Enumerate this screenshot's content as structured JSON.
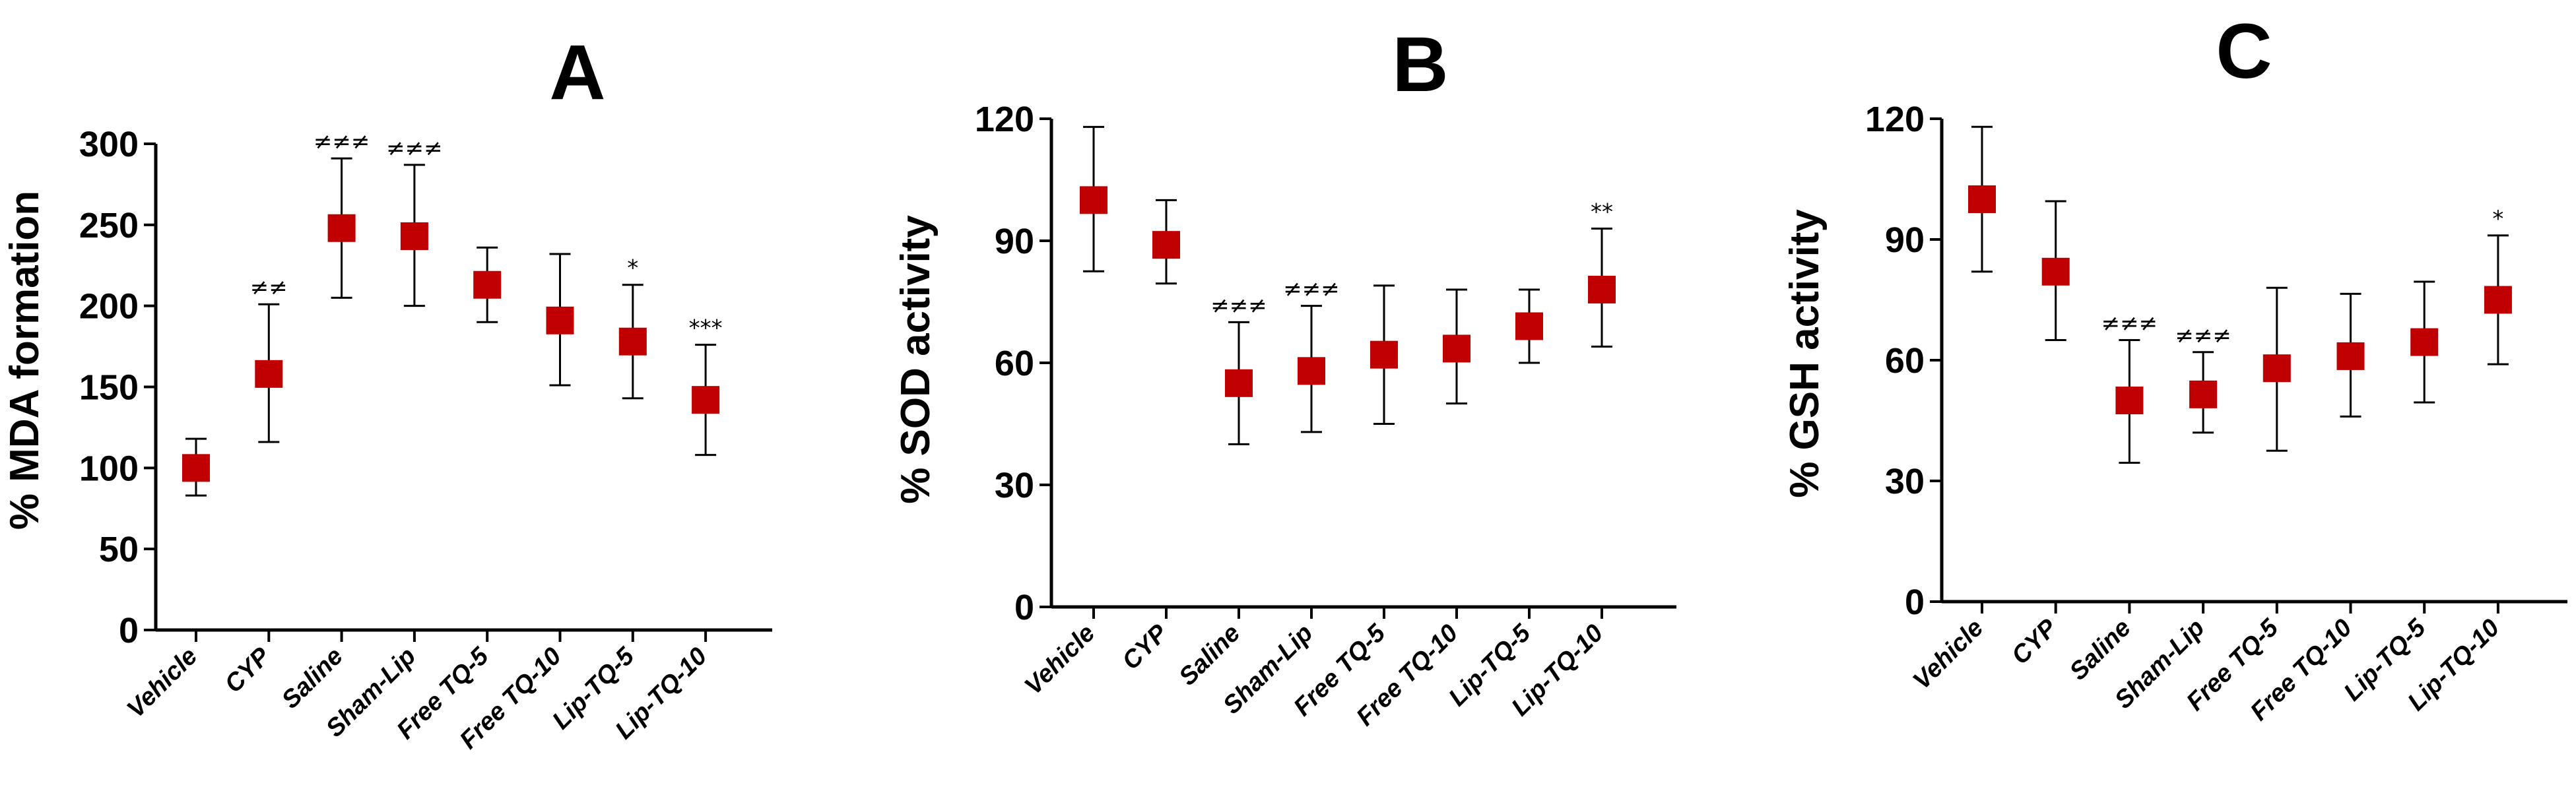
{
  "colors": {
    "marker": "#c00000",
    "axis": "#000000",
    "background": "#ffffff"
  },
  "chart_data": [
    {
      "type": "scatter",
      "panel_label": "A",
      "ylabel": "% MDA formation",
      "xlabel": "",
      "ylim": [
        0,
        300
      ],
      "yticks": [
        0,
        50,
        100,
        150,
        200,
        250,
        300
      ],
      "categories": [
        "Vehicle",
        "CYP",
        "Saline",
        "Sham-Lip",
        "Free TQ-5",
        "Free TQ-10",
        "Lip-TQ-5",
        "Lip-TQ-10"
      ],
      "series": [
        {
          "name": "% MDA formation",
          "values": [
            100,
            158,
            248,
            243,
            213,
            191,
            178,
            142
          ],
          "error_low": [
            83,
            116,
            205,
            200,
            190,
            151,
            143,
            108
          ],
          "error_high": [
            118,
            201,
            291,
            287,
            236,
            232,
            213,
            176
          ],
          "annotations": [
            "",
            "≠≠",
            "≠≠≠",
            "≠≠≠",
            "",
            "",
            "*",
            "***"
          ]
        }
      ]
    },
    {
      "type": "scatter",
      "panel_label": "B",
      "ylabel": "% SOD activity",
      "xlabel": "",
      "ylim": [
        0,
        120
      ],
      "yticks": [
        0,
        30,
        60,
        90,
        120
      ],
      "categories": [
        "Vehicle",
        "CYP",
        "Saline",
        "Sham-Lip",
        "Free TQ-5",
        "Free TQ-10",
        "Lip-TQ-5",
        "Lip-TQ-10"
      ],
      "series": [
        {
          "name": "% SOD activity",
          "values": [
            100,
            89,
            55,
            58,
            62,
            63.5,
            69,
            78
          ],
          "error_low": [
            82.5,
            79.5,
            40,
            43,
            45,
            50,
            60,
            64
          ],
          "error_high": [
            118,
            100,
            70,
            74,
            79,
            78,
            78,
            93
          ],
          "annotations": [
            "",
            "",
            "≠≠≠",
            "≠≠≠",
            "",
            "",
            "",
            "**"
          ]
        }
      ]
    },
    {
      "type": "scatter",
      "panel_label": "C",
      "ylabel": "% GSH activity",
      "xlabel": "",
      "ylim": [
        0,
        120
      ],
      "yticks": [
        0,
        30,
        60,
        90,
        120
      ],
      "categories": [
        "Vehicle",
        "CYP",
        "Saline",
        "Sham-Lip",
        "Free TQ-5",
        "Free TQ-10",
        "Lip-TQ-5",
        "Lip-TQ-10"
      ],
      "series": [
        {
          "name": "% GSH activity",
          "values": [
            100,
            82,
            50,
            51.5,
            58,
            61,
            64.5,
            75
          ],
          "error_low": [
            82,
            65,
            34.5,
            42,
            37.5,
            46,
            49.5,
            59
          ],
          "error_high": [
            118,
            99.5,
            65,
            62,
            78,
            76.5,
            79.5,
            91
          ],
          "annotations": [
            "",
            "",
            "≠≠≠",
            "≠≠≠",
            "",
            "",
            "",
            "*"
          ]
        }
      ]
    }
  ]
}
